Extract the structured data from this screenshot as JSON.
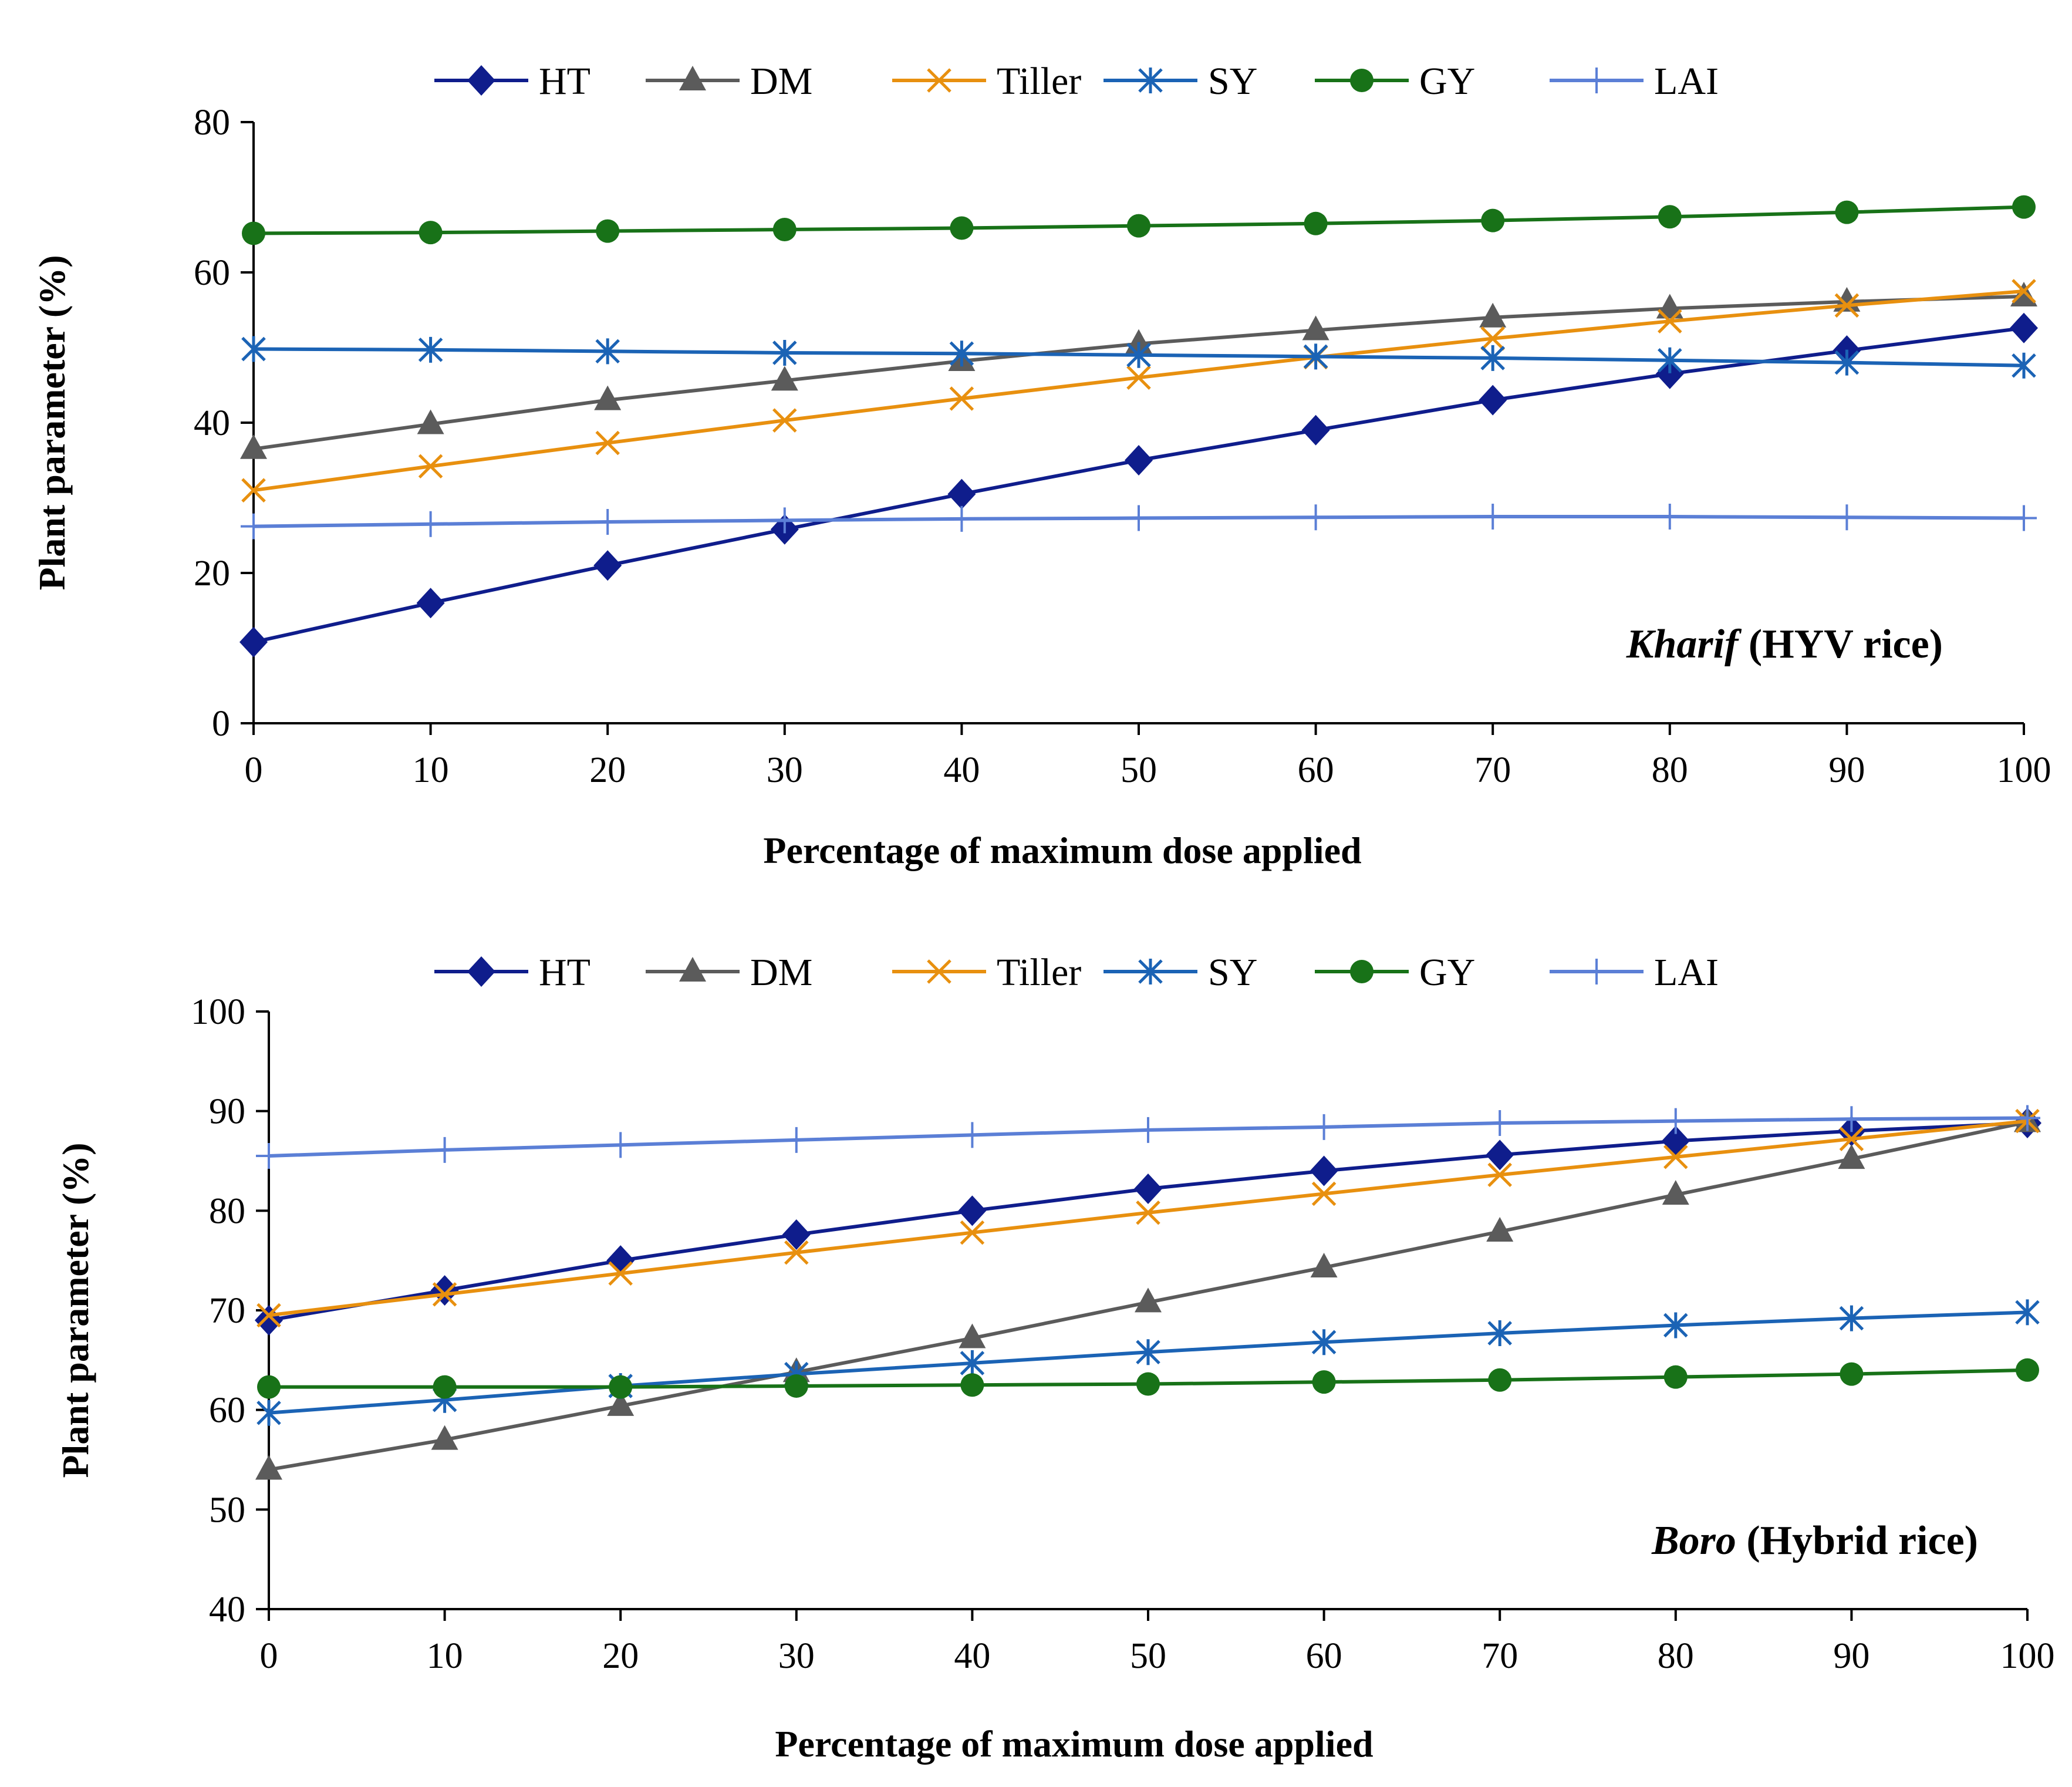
{
  "chart_data": [
    {
      "type": "line",
      "annotation": {
        "italic": "Kharif",
        "rest": "(HYV rice)"
      },
      "xlabel": "Percentage  of maximum dose applied",
      "ylabel": "Plant parameter (%)",
      "x": [
        0,
        10,
        20,
        30,
        40,
        50,
        60,
        70,
        80,
        90,
        100
      ],
      "xlim": [
        0,
        100
      ],
      "xticks": [
        "0",
        "10",
        "20",
        "30",
        "40",
        "50",
        "60",
        "70",
        "80",
        "90",
        "100"
      ],
      "ylim": [
        0,
        80
      ],
      "yticks": [
        "0",
        "20",
        "40",
        "60",
        "80"
      ],
      "grid": false,
      "legend_position": "top",
      "series": [
        {
          "name": "HT",
          "color": "#0f1d8c",
          "marker": "diamond",
          "values": [
            10.8,
            16,
            21,
            25.8,
            30.5,
            35,
            39,
            43,
            46.5,
            49.6,
            52.6
          ]
        },
        {
          "name": "DM",
          "color": "#5b5b5b",
          "marker": "triangle",
          "values": [
            36.5,
            39.8,
            43,
            45.6,
            48.2,
            50.5,
            52.3,
            54,
            55.2,
            56.1,
            56.8
          ]
        },
        {
          "name": "Tiller",
          "color": "#e8900f",
          "marker": "x",
          "values": [
            31,
            34.2,
            37.3,
            40.3,
            43.2,
            46,
            48.7,
            51.2,
            53.5,
            55.6,
            57.5
          ]
        },
        {
          "name": "SY",
          "color": "#1b63b5",
          "marker": "asterisk",
          "values": [
            49.8,
            49.7,
            49.5,
            49.3,
            49.2,
            49,
            48.8,
            48.6,
            48.3,
            48,
            47.6
          ]
        },
        {
          "name": "GY",
          "color": "#187218",
          "marker": "circle",
          "values": [
            65.2,
            65.3,
            65.5,
            65.7,
            65.9,
            66.2,
            66.5,
            66.9,
            67.4,
            68,
            68.7
          ]
        },
        {
          "name": "LAI",
          "color": "#5b7fd6",
          "marker": "plus",
          "values": [
            26.2,
            26.5,
            26.8,
            27,
            27.2,
            27.3,
            27.4,
            27.5,
            27.5,
            27.4,
            27.3
          ]
        }
      ]
    },
    {
      "type": "line",
      "annotation": {
        "italic": "Boro",
        "rest": "(Hybrid rice)"
      },
      "xlabel": "Percentage  of maximum dose applied",
      "ylabel": "Plant parameter (%)",
      "x": [
        0,
        10,
        20,
        30,
        40,
        50,
        60,
        70,
        80,
        90,
        100
      ],
      "xlim": [
        0,
        100
      ],
      "xticks": [
        "0",
        "10",
        "20",
        "30",
        "40",
        "50",
        "60",
        "70",
        "80",
        "90",
        "100"
      ],
      "ylim": [
        40,
        100
      ],
      "yticks": [
        "40",
        "50",
        "60",
        "70",
        "80",
        "90",
        "100"
      ],
      "grid": false,
      "legend_position": "top",
      "series": [
        {
          "name": "HT",
          "color": "#0f1d8c",
          "marker": "diamond",
          "values": [
            69,
            72,
            75,
            77.6,
            80,
            82.2,
            84,
            85.6,
            87,
            88,
            88.8
          ]
        },
        {
          "name": "DM",
          "color": "#5b5b5b",
          "marker": "triangle",
          "values": [
            54,
            57,
            60.4,
            63.8,
            67.2,
            70.8,
            74.3,
            77.9,
            81.6,
            85.2,
            88.9
          ]
        },
        {
          "name": "Tiller",
          "color": "#e8900f",
          "marker": "x",
          "values": [
            69.5,
            71.6,
            73.7,
            75.8,
            77.8,
            79.8,
            81.7,
            83.6,
            85.4,
            87.2,
            89
          ]
        },
        {
          "name": "SY",
          "color": "#1b63b5",
          "marker": "asterisk",
          "values": [
            59.7,
            61,
            62.4,
            63.6,
            64.7,
            65.8,
            66.8,
            67.7,
            68.5,
            69.2,
            69.8
          ]
        },
        {
          "name": "GY",
          "color": "#187218",
          "marker": "circle",
          "values": [
            62.3,
            62.3,
            62.3,
            62.4,
            62.5,
            62.6,
            62.8,
            63,
            63.3,
            63.6,
            64
          ]
        },
        {
          "name": "LAI",
          "color": "#5b7fd6",
          "marker": "plus",
          "values": [
            85.5,
            86.1,
            86.6,
            87.1,
            87.6,
            88.1,
            88.4,
            88.8,
            89,
            89.2,
            89.3
          ]
        }
      ]
    }
  ]
}
